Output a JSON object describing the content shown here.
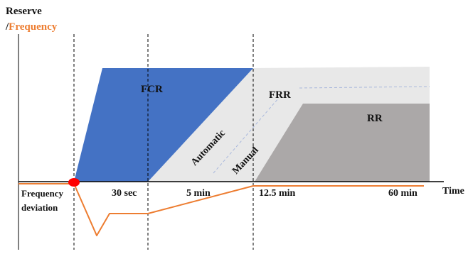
{
  "axes": {
    "y_label_line1": "Reserve",
    "y_label_line2_prefix": "/",
    "y_label_line2_highlight": "Frequency",
    "x_label": "Time"
  },
  "regions": {
    "fcr": "FCR",
    "frr": "FRR",
    "rr": "RR",
    "automatic": "Automatic",
    "manual": "Manual"
  },
  "time_markers": [
    "30 sec",
    "5 min",
    "12.5 min",
    "60 min"
  ],
  "frequency_label": [
    "Frequency",
    "deviation"
  ],
  "colors": {
    "fcr": "#4472C4",
    "frr": "#E8E8E8",
    "rr": "#ABA8A8",
    "frequency": "#ED7D31",
    "event_marker": "#FF0000",
    "axis": "#000000"
  }
}
